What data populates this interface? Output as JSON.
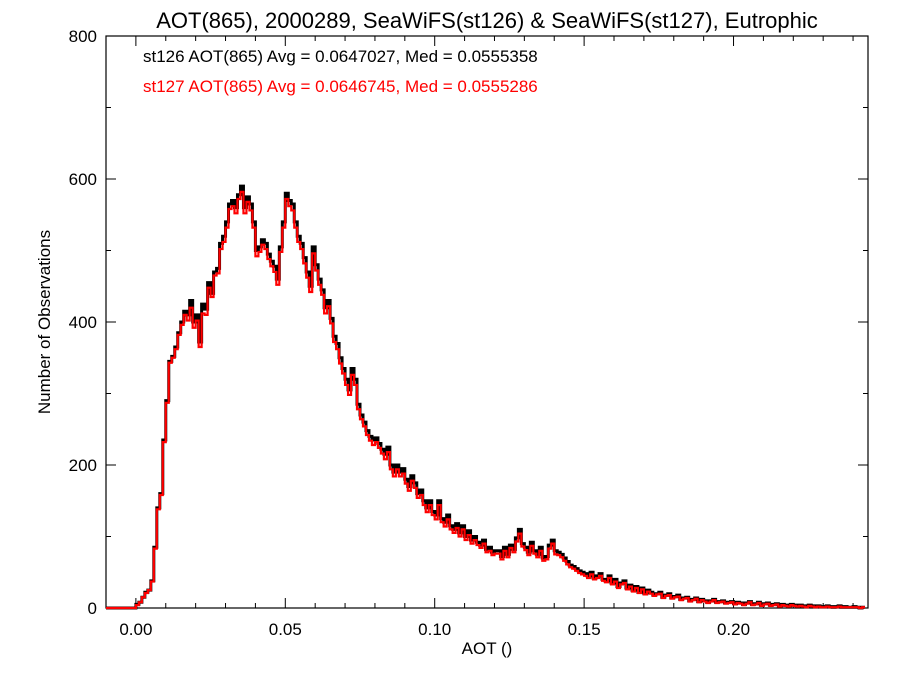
{
  "chart_data": {
    "type": "histogram",
    "title": "AOT(865), 2000289, SeaWiFS(st126) & SeaWiFS(st127), Eutrophic",
    "xlabel": "AOT ()",
    "ylabel": "Number of Observations",
    "xlim": [
      -0.01,
      0.245
    ],
    "ylim": [
      0,
      800
    ],
    "x_ticks": [
      0.0,
      0.05,
      0.1,
      0.15,
      0.2
    ],
    "x_tick_labels": [
      "0.00",
      "0.05",
      "0.10",
      "0.15",
      "0.20"
    ],
    "y_ticks": [
      0,
      200,
      400,
      600,
      800
    ],
    "y_tick_labels": [
      "0",
      "200",
      "400",
      "600",
      "800"
    ],
    "grid": false,
    "legend_placement": "top-left",
    "bin_start": -0.01,
    "bin_width": 0.001,
    "annotations": [
      {
        "text": "st126 AOT(865) Avg = 0.0647027, Med = 0.0555358",
        "color": "#000000"
      },
      {
        "text": "st127 AOT(865) Avg = 0.0646745, Med = 0.0555286",
        "color": "#ff0000"
      }
    ],
    "series": [
      {
        "color": "#000000",
        "values": [
          0,
          0,
          0,
          0,
          0,
          0,
          0,
          0,
          0,
          0,
          5,
          8,
          15,
          22,
          25,
          38,
          85,
          140,
          160,
          235,
          290,
          345,
          352,
          365,
          385,
          400,
          415,
          410,
          430,
          400,
          410,
          372,
          425,
          418,
          455,
          440,
          470,
          475,
          510,
          520,
          540,
          565,
          570,
          560,
          578,
          590,
          560,
          575,
          565,
          540,
          500,
          505,
          515,
          510,
          495,
          485,
          478,
          460,
          505,
          540,
          580,
          570,
          565,
          540,
          520,
          510,
          490,
          470,
          450,
          505,
          480,
          460,
          445,
          420,
          430,
          405,
          380,
          370,
          350,
          335,
          320,
          305,
          335,
          320,
          285,
          270,
          260,
          248,
          240,
          235,
          238,
          230,
          222,
          215,
          225,
          200,
          190,
          200,
          190,
          195,
          180,
          170,
          185,
          175,
          160,
          165,
          150,
          140,
          150,
          135,
          130,
          150,
          125,
          120,
          130,
          115,
          110,
          118,
          105,
          115,
          100,
          108,
          95,
          100,
          92,
          88,
          95,
          82,
          85,
          78,
          80,
          80,
          72,
          85,
          75,
          88,
          82,
          98,
          110,
          90,
          85,
          78,
          92,
          80,
          75,
          85,
          70,
          72,
          88,
          95,
          80,
          78,
          75,
          70,
          65,
          60,
          58,
          55,
          52,
          50,
          48,
          45,
          50,
          42,
          45,
          48,
          40,
          38,
          45,
          35,
          40,
          30,
          35,
          38,
          28,
          32,
          25,
          30,
          22,
          28,
          20,
          25,
          22,
          18,
          20,
          22,
          15,
          18,
          20,
          14,
          16,
          18,
          12,
          14,
          15,
          10,
          12,
          14,
          9,
          12,
          10,
          8,
          10,
          12,
          8,
          9,
          10,
          7,
          8,
          9,
          6,
          8,
          7,
          5,
          7,
          9,
          5,
          6,
          8,
          4,
          6,
          7,
          4,
          5,
          6,
          3,
          5,
          4,
          3,
          5,
          4,
          2,
          4,
          3,
          2,
          4,
          3,
          2,
          3,
          2,
          2,
          3,
          2,
          1,
          2,
          3,
          1,
          2,
          1,
          1,
          2,
          1,
          0,
          1
        ]
      },
      {
        "color": "#ff0000",
        "values": [
          0,
          0,
          0,
          0,
          0,
          0,
          0,
          0,
          0,
          0,
          4,
          8,
          15,
          21,
          25,
          37,
          83,
          138,
          158,
          232,
          287,
          343,
          350,
          362,
          382,
          396,
          410,
          402,
          420,
          392,
          402,
          365,
          412,
          410,
          448,
          435,
          465,
          468,
          502,
          512,
          532,
          558,
          562,
          552,
          572,
          582,
          552,
          568,
          556,
          532,
          492,
          498,
          508,
          502,
          488,
          478,
          470,
          452,
          498,
          532,
          572,
          562,
          556,
          532,
          512,
          502,
          482,
          462,
          442,
          496,
          472,
          452,
          438,
          412,
          422,
          398,
          372,
          362,
          342,
          328,
          312,
          298,
          326,
          312,
          278,
          264,
          254,
          242,
          234,
          228,
          232,
          224,
          216,
          208,
          218,
          194,
          184,
          194,
          184,
          188,
          174,
          164,
          178,
          168,
          154,
          158,
          144,
          134,
          144,
          130,
          124,
          144,
          120,
          114,
          124,
          110,
          105,
          112,
          100,
          110,
          95,
          102,
          90,
          95,
          88,
          84,
          90,
          78,
          80,
          74,
          76,
          76,
          68,
          80,
          71,
          84,
          78,
          93,
          104,
          86,
          81,
          74,
          87,
          76,
          71,
          80,
          66,
          68,
          83,
          90,
          75,
          74,
          71,
          66,
          61,
          57,
          55,
          52,
          49,
          47,
          45,
          42,
          47,
          40,
          42,
          45,
          38,
          36,
          42,
          33,
          37,
          28,
          33,
          35,
          26,
          30,
          23,
          28,
          21,
          26,
          19,
          23,
          20,
          17,
          19,
          20,
          14,
          17,
          18,
          13,
          15,
          16,
          11,
          13,
          14,
          9,
          11,
          13,
          8,
          11,
          9,
          7,
          9,
          11,
          7,
          8,
          9,
          6,
          7,
          8,
          5,
          7,
          6,
          4,
          6,
          8,
          4,
          5,
          7,
          3,
          5,
          6,
          3,
          4,
          5,
          2,
          4,
          3,
          2,
          4,
          3,
          2,
          3,
          2,
          1,
          3,
          2,
          1,
          2,
          1,
          1,
          2,
          1,
          1,
          1,
          2,
          1,
          1,
          1,
          1,
          1,
          1,
          0,
          1
        ]
      }
    ]
  }
}
